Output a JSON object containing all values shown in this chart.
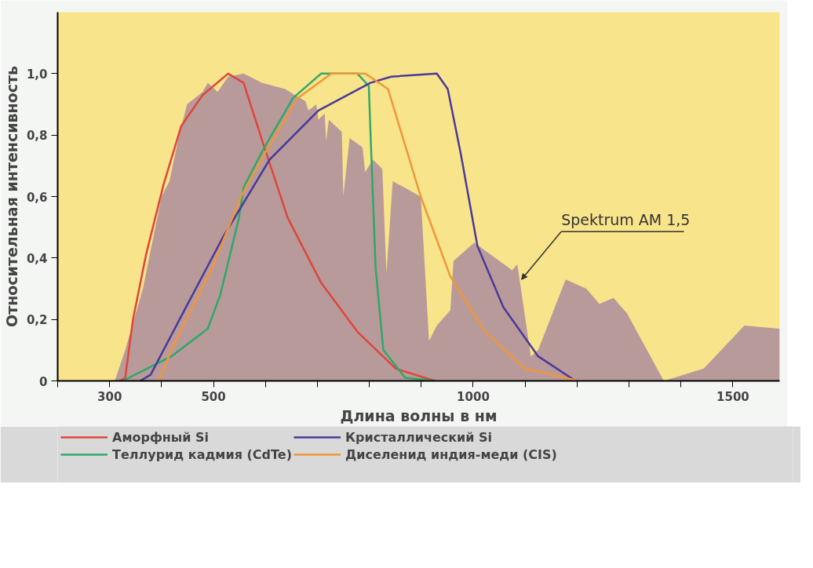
{
  "chart_data": {
    "type": "line",
    "xlabel": "Длина волны в нм",
    "ylabel": "Относительная интенсивность",
    "xlim": [
      200,
      1590
    ],
    "ylim": [
      0,
      1.2
    ],
    "xticks": [
      {
        "value": 200,
        "label": null
      },
      300,
      {
        "value": 400,
        "label": null
      },
      500,
      {
        "value": 600,
        "label": null
      },
      {
        "value": 700,
        "label": null
      },
      {
        "value": 800,
        "label": null
      },
      {
        "value": 900,
        "label": null
      },
      1000,
      {
        "value": 1100,
        "label": null
      },
      {
        "value": 1200,
        "label": null
      },
      {
        "value": 1300,
        "label": null
      },
      {
        "value": 1400,
        "label": null
      },
      1500
    ],
    "yticks": [
      0,
      {
        "value": 0.2,
        "label": "0,2"
      },
      {
        "value": 0.4,
        "label": "0,4"
      },
      {
        "value": 0.6,
        "label": "0,6"
      },
      {
        "value": 0.8,
        "label": "0,8"
      },
      {
        "value": 1.0,
        "label": "1,0"
      }
    ],
    "grid": false,
    "legend": "bottom",
    "series": [
      {
        "type": "area",
        "color": "#b89a9a",
        "x": [
          310,
          322,
          330,
          364,
          400,
          415,
          434,
          449,
          479,
          489,
          508,
          528,
          558,
          593,
          638,
          657,
          677,
          683,
          698,
          702,
          714,
          717,
          722,
          747,
          750,
          762,
          787,
          792,
          807,
          825,
          833,
          845,
          899,
          915,
          930,
          956,
          962,
          1002,
          1075,
          1085,
          1111,
          1125,
          1178,
          1218,
          1243,
          1270,
          1296,
          1367,
          1444,
          1522,
          1590
        ],
        "values": [
          0,
          0.06,
          0.1,
          0.3,
          0.6,
          0.65,
          0.8,
          0.9,
          0.94,
          0.97,
          0.94,
          0.99,
          1.0,
          0.97,
          0.95,
          0.93,
          0.91,
          0.88,
          0.9,
          0.85,
          0.87,
          0.78,
          0.85,
          0.81,
          0.6,
          0.79,
          0.76,
          0.68,
          0.72,
          0.69,
          0.35,
          0.65,
          0.6,
          0.13,
          0.18,
          0.23,
          0.39,
          0.45,
          0.36,
          0.38,
          0.08,
          0.1,
          0.33,
          0.3,
          0.25,
          0.27,
          0.22,
          0.0,
          0.04,
          0.18,
          0.17
        ]
      },
      {
        "name": "Аморфный Si",
        "color": "#e0453a",
        "x": [
          319,
          330,
          345,
          370,
          404,
          438,
          479,
          528,
          558,
          598,
          643,
          707,
          777,
          851,
          926
        ],
        "values": [
          0,
          0.01,
          0.2,
          0.41,
          0.64,
          0.83,
          0.93,
          1.0,
          0.97,
          0.76,
          0.53,
          0.32,
          0.16,
          0.04,
          0
        ]
      },
      {
        "name": "Теллурид кадмия (CdTe)",
        "color": "#2fa86a",
        "x": [
          325,
          419,
          489,
          513,
          549,
          558,
          598,
          653,
          707,
          777,
          799,
          802,
          812,
          827,
          869,
          926
        ],
        "values": [
          0,
          0.08,
          0.17,
          0.28,
          0.53,
          0.63,
          0.76,
          0.92,
          1.0,
          1.0,
          0.96,
          0.82,
          0.37,
          0.1,
          0.01,
          0
        ]
      },
      {
        "name": "Кристаллический Si",
        "color": "#4a3a9a",
        "x": [
          359,
          379,
          444,
          519,
          608,
          702,
          802,
          842,
          930,
          951,
          976,
          1008,
          1058,
          1125,
          1197
        ],
        "values": [
          0,
          0.02,
          0.23,
          0.47,
          0.72,
          0.88,
          0.97,
          0.99,
          1.0,
          0.95,
          0.74,
          0.44,
          0.24,
          0.08,
          0
        ]
      },
      {
        "name": "Диселенид индия-меди (CIS)",
        "color": "#f0963a",
        "x": [
          394,
          424,
          498,
          553,
          602,
          662,
          727,
          792,
          836,
          899,
          956,
          1023,
          1100,
          1203
        ],
        "values": [
          0,
          0.12,
          0.37,
          0.6,
          0.75,
          0.92,
          1.0,
          1.0,
          0.95,
          0.6,
          0.34,
          0.16,
          0.04,
          0
        ]
      }
    ],
    "annotations": [
      {
        "text": "Spektrum AM 1,5",
        "x": 1093,
        "y": 0.33
      }
    ]
  }
}
